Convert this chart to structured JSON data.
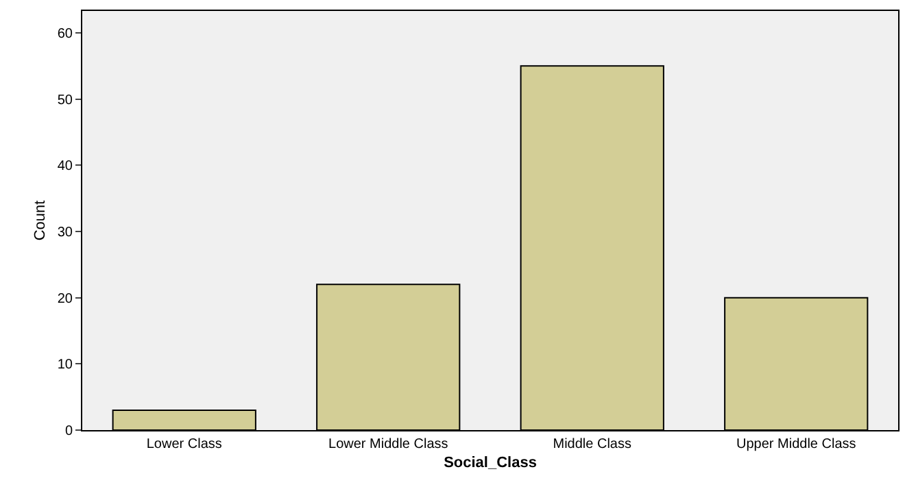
{
  "chart_data": {
    "type": "bar",
    "xlabel": "Social_Class",
    "ylabel": "Count",
    "categories": [
      "Lower Class",
      "Lower Middle Class",
      "Middle Class",
      "Upper Middle Class"
    ],
    "values": [
      3,
      22,
      55,
      20
    ],
    "color": "#d3ce96",
    "ylim": [
      0,
      63.3
    ],
    "yticks": [
      0,
      10,
      20,
      30,
      40,
      50,
      60
    ],
    "grid": false,
    "legend": false
  }
}
